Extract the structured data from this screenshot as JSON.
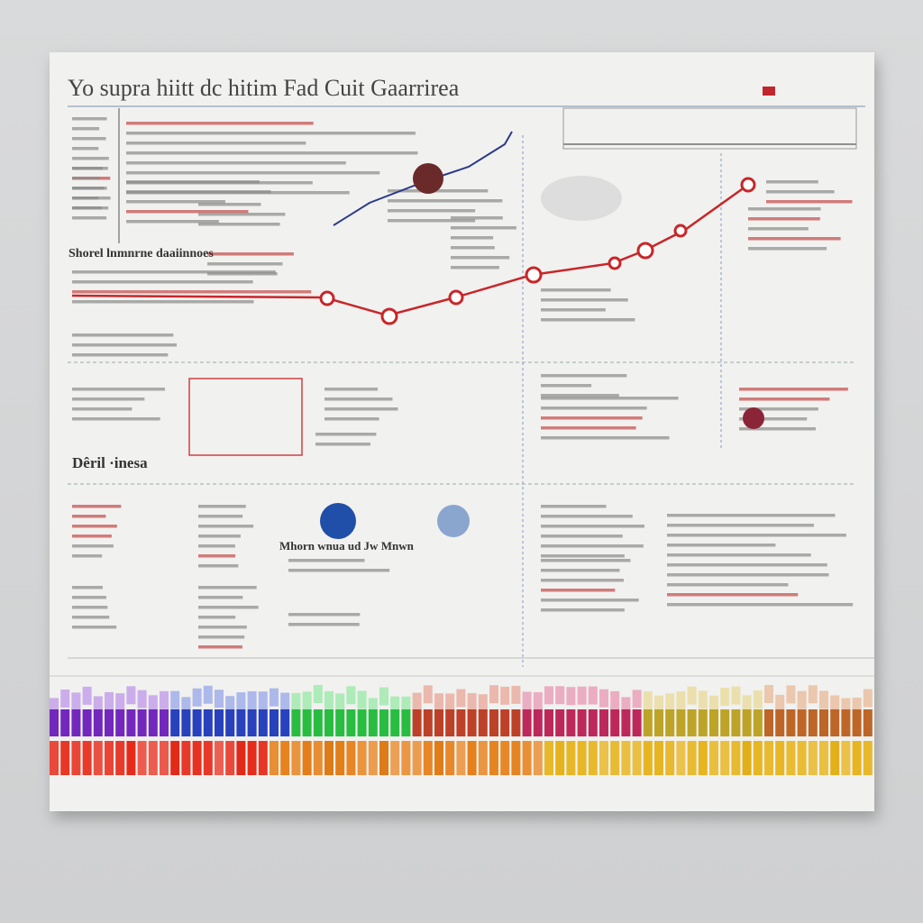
{
  "header": {
    "title": "Yo supra hiitt dc hitim Fad Cuit Gaarrirea"
  },
  "sections": [
    {
      "heading": "Shorel lnmnrne daaiinnoes"
    },
    {
      "heading": "Dêril ·inesa"
    },
    {
      "heading": "Mhorn wnua ud Jw Mnwn"
    }
  ]
}
